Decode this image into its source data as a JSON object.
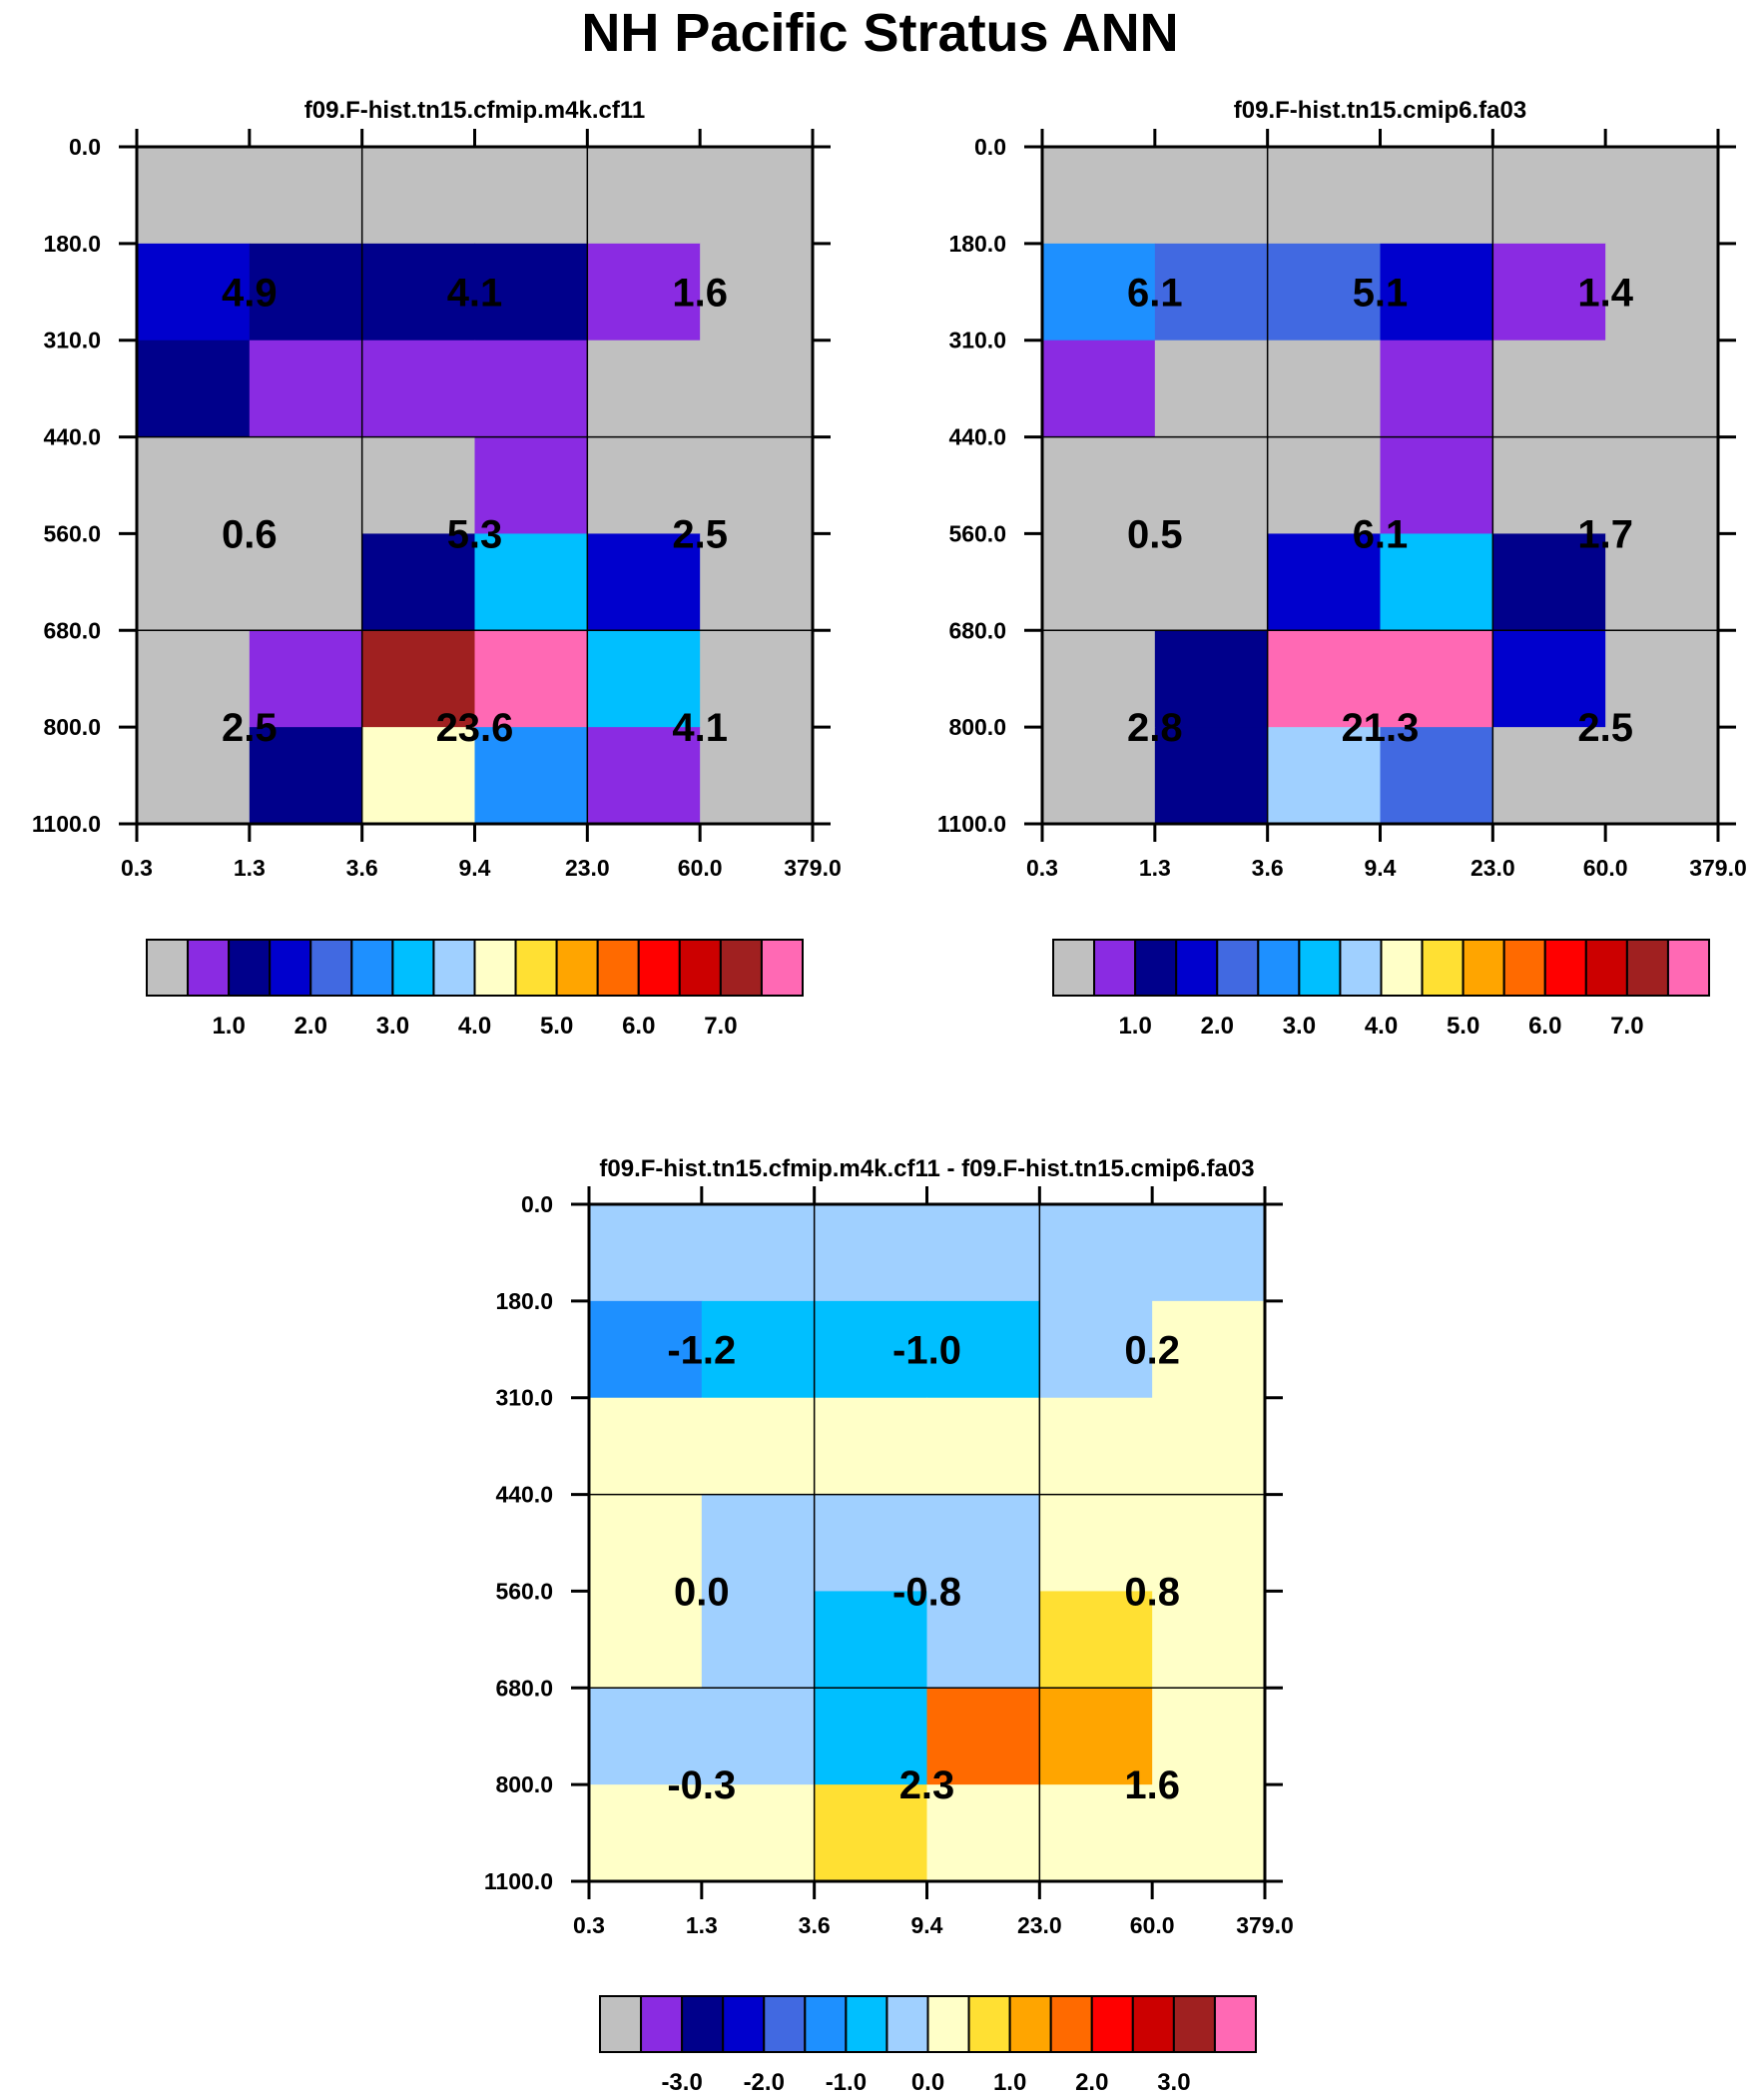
{
  "title": "NH Pacific Stratus ANN",
  "axes": {
    "y_ticks": [
      "0.0",
      "180.0",
      "310.0",
      "440.0",
      "560.0",
      "680.0",
      "800.0",
      "1100.0"
    ],
    "x_ticks": [
      "0.3",
      "1.3",
      "3.6",
      "9.4",
      "23.0",
      "60.0",
      "379.0"
    ]
  },
  "colors": {
    "palette": [
      "#c0c0c0",
      "#8a2be2",
      "#00008b",
      "#0000cd",
      "#4169e1",
      "#1e90ff",
      "#00bfff",
      "#a0d0ff",
      "#ffffc8",
      "#ffe033",
      "#ffa500",
      "#ff6a00",
      "#ff0000",
      "#cc0000",
      "#a02020",
      "#ff69b4"
    ],
    "grid": "#000000"
  },
  "colorbars": [
    {
      "labels": [
        "1.0",
        "2.0",
        "3.0",
        "4.0",
        "5.0",
        "6.0",
        "7.0"
      ]
    },
    {
      "labels": [
        "1.0",
        "2.0",
        "3.0",
        "4.0",
        "5.0",
        "6.0",
        "7.0"
      ]
    },
    {
      "labels": [
        "-3.0",
        "-2.0",
        "-1.0",
        "0.0",
        "1.0",
        "2.0",
        "3.0"
      ]
    }
  ],
  "chart_data": [
    {
      "type": "heatmap",
      "title": "f09.F-hist.tn15.cfmip.m4k.cf11",
      "y_bins": [
        "0.0",
        "180.0",
        "310.0",
        "440.0",
        "560.0",
        "680.0",
        "800.0",
        "1100.0"
      ],
      "x_bins": [
        "0.3",
        "1.3",
        "3.6",
        "9.4",
        "23.0",
        "60.0",
        "379.0"
      ],
      "cell_color_index": [
        [
          0,
          0,
          0,
          0,
          0,
          0
        ],
        [
          3,
          2,
          2,
          2,
          1,
          0
        ],
        [
          2,
          1,
          1,
          1,
          0,
          0
        ],
        [
          0,
          0,
          0,
          1,
          0,
          0
        ],
        [
          0,
          0,
          2,
          6,
          3,
          0
        ],
        [
          0,
          1,
          14,
          15,
          6,
          0
        ],
        [
          0,
          2,
          8,
          5,
          1,
          0
        ]
      ],
      "region_values": [
        [
          "4.9",
          "4.1",
          "1.6"
        ],
        [
          "0.6",
          "5.3",
          "2.5"
        ],
        [
          "2.5",
          "23.6",
          "4.1"
        ]
      ]
    },
    {
      "type": "heatmap",
      "title": "f09.F-hist.tn15.cmip6.fa03",
      "y_bins": [
        "0.0",
        "180.0",
        "310.0",
        "440.0",
        "560.0",
        "680.0",
        "800.0",
        "1100.0"
      ],
      "x_bins": [
        "0.3",
        "1.3",
        "3.6",
        "9.4",
        "23.0",
        "60.0",
        "379.0"
      ],
      "cell_color_index": [
        [
          0,
          0,
          0,
          0,
          0,
          0
        ],
        [
          5,
          4,
          4,
          3,
          1,
          0
        ],
        [
          1,
          0,
          0,
          1,
          0,
          0
        ],
        [
          0,
          0,
          0,
          1,
          0,
          0
        ],
        [
          0,
          0,
          3,
          6,
          2,
          0
        ],
        [
          0,
          2,
          15,
          15,
          3,
          0
        ],
        [
          0,
          2,
          7,
          4,
          0,
          0
        ]
      ],
      "region_values": [
        [
          "6.1",
          "5.1",
          "1.4"
        ],
        [
          "0.5",
          "6.1",
          "1.7"
        ],
        [
          "2.8",
          "21.3",
          "2.5"
        ]
      ]
    },
    {
      "type": "heatmap",
      "title": "f09.F-hist.tn15.cfmip.m4k.cf11 - f09.F-hist.tn15.cmip6.fa03",
      "y_bins": [
        "0.0",
        "180.0",
        "310.0",
        "440.0",
        "560.0",
        "680.0",
        "800.0",
        "1100.0"
      ],
      "x_bins": [
        "0.3",
        "1.3",
        "3.6",
        "9.4",
        "23.0",
        "60.0",
        "379.0"
      ],
      "cell_color_index": [
        [
          7,
          7,
          7,
          7,
          7,
          7
        ],
        [
          5,
          6,
          6,
          6,
          7,
          8
        ],
        [
          8,
          8,
          8,
          8,
          8,
          8
        ],
        [
          8,
          7,
          7,
          7,
          8,
          8
        ],
        [
          8,
          7,
          6,
          7,
          9,
          8
        ],
        [
          7,
          7,
          6,
          11,
          10,
          8
        ],
        [
          8,
          8,
          9,
          8,
          8,
          8
        ]
      ],
      "region_values": [
        [
          "-1.2",
          "-1.0",
          "0.2"
        ],
        [
          "0.0",
          "-0.8",
          "0.8"
        ],
        [
          "-0.3",
          "2.3",
          "1.6"
        ]
      ]
    }
  ]
}
